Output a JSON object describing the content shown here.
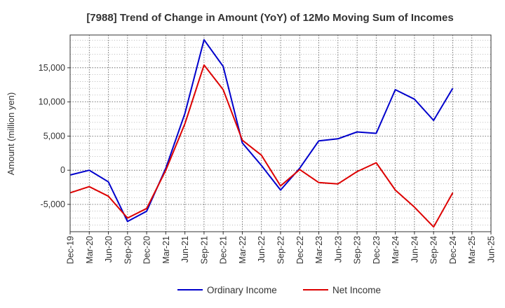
{
  "chart_data": {
    "type": "line",
    "title": "[7988]  Trend of Change in Amount (YoY) of 12Mo Moving Sum of Incomes",
    "xlabel": "",
    "ylabel": "Amount (million yen)",
    "categories": [
      "Dec-19",
      "Mar-20",
      "Jun-20",
      "Sep-20",
      "Dec-20",
      "Mar-21",
      "Jun-21",
      "Sep-21",
      "Dec-21",
      "Mar-22",
      "Jun-22",
      "Sep-22",
      "Dec-22",
      "Mar-23",
      "Jun-23",
      "Sep-23",
      "Dec-23",
      "Mar-24",
      "Jun-24",
      "Sep-24",
      "Dec-24",
      "Mar-25",
      "Jun-25"
    ],
    "x_tick_labels": [
      "Dec-19",
      "Mar-20",
      "Jun-20",
      "Sep-20",
      "Dec-20",
      "Mar-21",
      "Jun-21",
      "Sep-21",
      "Dec-21",
      "Mar-22",
      "Jun-22",
      "Sep-22",
      "Dec-22",
      "Mar-23",
      "Jun-23",
      "Sep-23",
      "Dec-23",
      "Mar-24",
      "Jun-24",
      "Sep-24",
      "Dec-24",
      "Mar-25",
      "Jun-25"
    ],
    "ylim": [
      -9000,
      19800
    ],
    "y_ticks": [
      -5000,
      0,
      5000,
      10000,
      15000
    ],
    "y_tick_labels": [
      "-5,000",
      "0",
      "5,000",
      "10,000",
      "15,000"
    ],
    "grid": true,
    "legend_position": "bottom",
    "series": [
      {
        "name": "Ordinary Income",
        "color": "#0000cc",
        "values": [
          -700,
          0,
          -1700,
          -7500,
          -6000,
          300,
          8300,
          19100,
          15200,
          4000,
          700,
          -2900,
          300,
          4300,
          4600,
          5600,
          5400,
          11800,
          10400,
          7300,
          12000,
          null,
          null
        ]
      },
      {
        "name": "Net Income",
        "color": "#dd0000",
        "values": [
          -3300,
          -2400,
          -3800,
          -7000,
          -5600,
          0,
          6800,
          15400,
          11800,
          4400,
          2200,
          -2300,
          100,
          -1800,
          -2000,
          -200,
          1100,
          -2900,
          -5400,
          -8300,
          -3300,
          null,
          null
        ]
      }
    ]
  }
}
